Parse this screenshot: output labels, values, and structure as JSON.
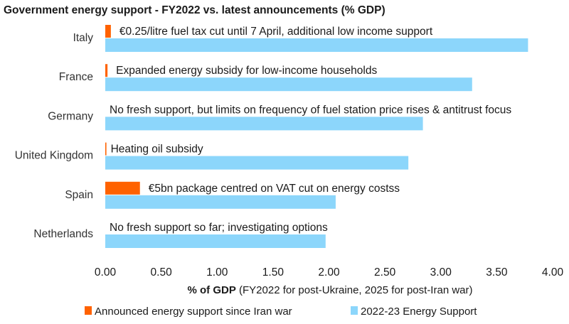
{
  "chart_data": {
    "type": "bar",
    "orientation": "horizontal",
    "title": "Government energy support - FY2022 vs. latest announcements (% GDP)",
    "categories": [
      "Italy",
      "France",
      "Germany",
      "United Kingdom",
      "Spain",
      "Netherlands"
    ],
    "annotations": [
      "€0.25/litre fuel tax cut until 7 April, additional low income support",
      "Expanded energy subsidy for low-income households",
      "No fresh support, but limits on frequency of fuel station price rises & antitrust focus",
      "Heating oil subsidy",
      "€5bn package centred on VAT cut on energy costss",
      "No fresh support so far; investigating options"
    ],
    "series": [
      {
        "name": "Announced energy support since Iran war",
        "color": "#ff6200",
        "values": [
          0.05,
          0.02,
          0.0,
          0.01,
          0.31,
          0.0
        ]
      },
      {
        "name": "2022-23 Energy Support",
        "color": "#8cd6fb",
        "values": [
          3.78,
          3.28,
          2.84,
          2.71,
          2.06,
          1.97
        ]
      }
    ],
    "xlim": [
      0,
      4
    ],
    "xticks": [
      "0.00",
      "0.50",
      "1.00",
      "1.50",
      "2.00",
      "2.50",
      "3.00",
      "3.50",
      "4.00"
    ],
    "xlabel_bold": "% of GDP",
    "xlabel_rest": " (FY2022 for post-Ukraine, 2025 for post-Iran war)",
    "grid": false,
    "legend_position": "bottom"
  }
}
